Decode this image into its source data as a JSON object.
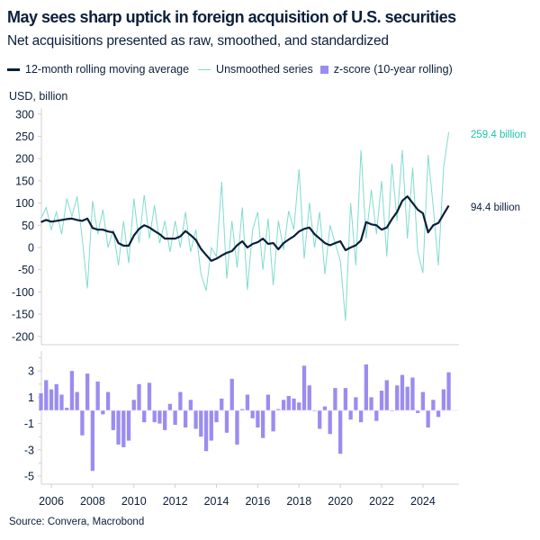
{
  "title": "May sees sharp uptick in foreign acquisition of U.S. securities",
  "subtitle": "Net acquisitions presented as raw, smoothed, and standardized",
  "source": "Source: Convera, Macrobond",
  "colors": {
    "ma": "#0b1f3a",
    "raw": "#7fdccf",
    "raw_label": "#1fc3ad",
    "zscore": "#9b8cf0",
    "axis": "#d0d0d0"
  },
  "chart_data": [
    {
      "type": "line",
      "ylabel": "USD, billion",
      "ylim": [
        -200,
        300
      ],
      "yticks": [
        "300",
        "250",
        "200",
        "150",
        "100",
        "50",
        "0",
        "-50",
        "-100",
        "-150",
        "-200"
      ],
      "x_start": 2005.5,
      "x_step_years": 0.25,
      "legend_placement": "top",
      "series": [
        {
          "name": "12-month rolling moving average",
          "end_label": "94.4 billion",
          "values": [
            57,
            62,
            58,
            60,
            62,
            64,
            65,
            62,
            60,
            65,
            44,
            40,
            40,
            36,
            34,
            10,
            4,
            4,
            27,
            42,
            50,
            45,
            37,
            30,
            20,
            20,
            20,
            25,
            37,
            28,
            17,
            -3,
            -17,
            -30,
            -25,
            -18,
            -12,
            -8,
            5,
            14,
            0,
            8,
            12,
            20,
            8,
            10,
            -4,
            10,
            18,
            25,
            36,
            42,
            45,
            30,
            20,
            10,
            5,
            10,
            14,
            -6,
            0,
            5,
            16,
            57,
            52,
            50,
            40,
            45,
            64,
            80,
            105,
            115,
            100,
            85,
            77,
            34,
            50,
            55,
            75,
            94.4
          ]
        },
        {
          "name": "Unsmoothed series",
          "end_label": "259.4 billion",
          "values": [
            65,
            90,
            40,
            80,
            30,
            110,
            70,
            115,
            20,
            -92,
            105,
            30,
            85,
            0,
            40,
            -40,
            60,
            -35,
            110,
            10,
            118,
            20,
            95,
            10,
            60,
            -10,
            60,
            0,
            80,
            -10,
            40,
            -60,
            -97,
            0,
            -20,
            148,
            -70,
            60,
            -45,
            90,
            -95,
            40,
            80,
            -50,
            65,
            -85,
            60,
            -5,
            82,
            40,
            176,
            -25,
            100,
            0,
            80,
            -60,
            50,
            10,
            -30,
            -165,
            100,
            -40,
            219,
            20,
            130,
            30,
            150,
            -20,
            189,
            60,
            219,
            20,
            180,
            -10,
            -57,
            208,
            90,
            -40,
            180,
            259.4
          ]
        }
      ]
    },
    {
      "type": "bar",
      "ylim": [
        -5.5,
        4.5
      ],
      "yticks": [
        "3",
        "1",
        "-1",
        "-3",
        "-5"
      ],
      "x_start": 2005.5,
      "x_step_years": 0.25,
      "xticks": [
        "2006",
        "2008",
        "2010",
        "2012",
        "2014",
        "2016",
        "2018",
        "2020",
        "2022",
        "2024"
      ],
      "series": [
        {
          "name": "z-score (10-year rolling)",
          "values": [
            1.3,
            2.3,
            1.6,
            2.0,
            1.2,
            0.2,
            3.0,
            1.4,
            -1.9,
            2.8,
            -4.6,
            2.2,
            -0.3,
            1.4,
            -1.5,
            -2.6,
            -2.8,
            -2.3,
            0.8,
            2.0,
            -0.9,
            2.1,
            -0.9,
            -1.0,
            -1.5,
            0.5,
            -1.1,
            1.4,
            -1.3,
            0.8,
            -1.4,
            -2.0,
            -3.1,
            -2.3,
            -0.9,
            0.9,
            -1.7,
            2.4,
            -2.6,
            0.1,
            1.2,
            -0.6,
            -1.3,
            -2.1,
            1.2,
            -1.6,
            0.1,
            0.8,
            1.1,
            0.9,
            0.6,
            3.4,
            1.9,
            0.0,
            -1.4,
            0.3,
            -1.8,
            1.7,
            -3.3,
            1.7,
            -0.7,
            1.0,
            -0.9,
            3.5,
            1.0,
            -0.8,
            1.5,
            2.3,
            0.0,
            1.9,
            2.7,
            1.8,
            2.5,
            -0.2,
            1.4,
            -1.3,
            0.8,
            -0.5,
            1.6,
            2.9
          ]
        }
      ]
    }
  ]
}
